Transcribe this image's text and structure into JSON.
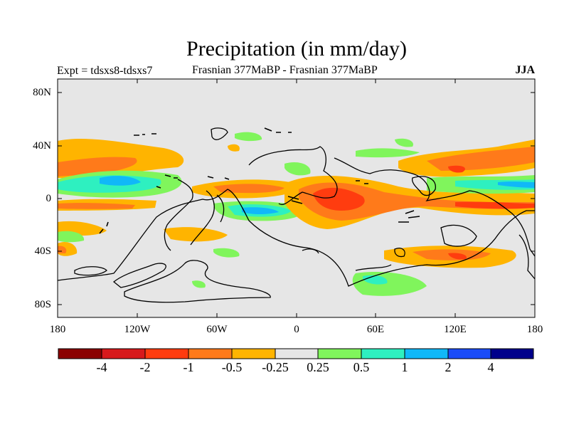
{
  "title": "Precipitation (in mm/day)",
  "subtitle_left": "Expt = tdsxs8-tdsxs7",
  "subtitle_center": "Frasnian 377MaBP - Frasnian 377MaBP",
  "subtitle_right": "JJA",
  "map": {
    "projection": "cylindrical-equidistant",
    "lon_range": [
      -180,
      180
    ],
    "lat_range": [
      -90,
      90
    ],
    "background_color": "#e6e6e6",
    "lat_tick_labels": [
      "80N",
      "40N",
      "0",
      "40S",
      "80S"
    ],
    "lon_tick_labels": [
      "180",
      "120W",
      "60W",
      "0",
      "60E",
      "120E",
      "180"
    ]
  },
  "colorbar": {
    "colors": [
      "#8b0000",
      "#d7191c",
      "#ff3c0f",
      "#ff7a1a",
      "#ffb400",
      "#e6e6e6",
      "#80f55c",
      "#2ef0c0",
      "#10b8f8",
      "#1a4cf8",
      "#00008b"
    ],
    "labels": [
      "-4",
      "-2",
      "-1",
      "-0.5",
      "-0.25",
      "0.25",
      "0.5",
      "1",
      "2",
      "4"
    ]
  }
}
